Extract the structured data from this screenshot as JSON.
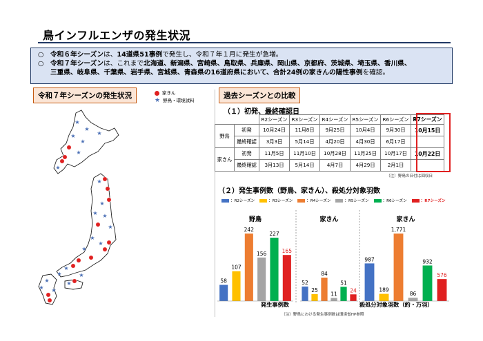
{
  "page": {
    "title": "鳥インフルエンザの発生状況"
  },
  "summary": {
    "bullet": "○",
    "r6_bold1": "令和６年シーズン",
    "r6_text1": "は、",
    "r6_bold2": "14道県51事例",
    "r6_text2": "で発生し、令和７年１月に発生が急増。",
    "r7_bold1": "令和７年シーズン",
    "r7_text1": "は、これまで",
    "r7_bold2": "北海道、新潟県、宮崎県、鳥取県、兵庫県、岡山県、京都府、茨城県、埼玉県、香川県、",
    "r7_bold3": "三重県、岐阜県、千葉県、岩手県、宮城県、青森県の16道府県において、合計24例の家きんの陽性事例",
    "r7_text3": "を確認。"
  },
  "map_section": {
    "label": "令和７年シーズンの発生状況",
    "legend_poultry": "家きん",
    "legend_wild": "野鳥・環境試料",
    "legend_poultry_color": "#e02020",
    "legend_wild_color": "#4a6fb5"
  },
  "compare_section": {
    "label": "過去シーズンとの比較",
    "sub1": "（１）初発、最終確認日",
    "sub2": "（２）発生事例数（野鳥、家きん）、殺処分対象羽数",
    "headers": [
      "R2シーズン",
      "R3シーズン",
      "R4シーズン",
      "R5シーズン",
      "R6シーズン",
      "R7シーズン"
    ],
    "groups": [
      {
        "name": "野鳥",
        "rows": [
          {
            "label": "初発",
            "values": [
              "10月24日",
              "11月8日",
              "9月25日",
              "10月4日",
              "9月30日",
              "10月15日"
            ]
          },
          {
            "label": "最終確認",
            "values": [
              "3月3日",
              "5月14日",
              "4月20日",
              "4月30日",
              "6月17日",
              ""
            ]
          }
        ]
      },
      {
        "name": "家きん",
        "rows": [
          {
            "label": "初発",
            "values": [
              "11月5日",
              "11月10日",
              "10月28日",
              "11月25日",
              "10月17日",
              "10月22日"
            ]
          },
          {
            "label": "最終確認",
            "values": [
              "3月13日",
              "5月14日",
              "4月7日",
              "4月29日",
              "2月1日",
              ""
            ]
          }
        ]
      }
    ],
    "note1": "（注）野鳥の日付は回収日",
    "note2": "（注）野鳥における発生事例数は環境省HP参照",
    "caption_cases": "発生事例数",
    "caption_culled": "殺処分対象羽数（約・万羽）"
  },
  "chart_data": [
    {
      "type": "bar",
      "title": "野鳥",
      "categories": [
        "R2シーズン",
        "R3シーズン",
        "R4シーズン",
        "R5シーズン",
        "R6シーズン",
        "R7シーズン"
      ],
      "values": [
        58,
        107,
        242,
        156,
        227,
        165
      ],
      "colors": [
        "#4472c4",
        "#ffc000",
        "#ed7d31",
        "#a5a5a5",
        "#00b050",
        "#e02020"
      ]
    },
    {
      "type": "bar",
      "title": "家きん",
      "categories": [
        "R2シーズン",
        "R3シーズン",
        "R4シーズン",
        "R5シーズン",
        "R6シーズン",
        "R7シーズン"
      ],
      "values": [
        52,
        25,
        84,
        11,
        51,
        24
      ],
      "colors": [
        "#4472c4",
        "#ffc000",
        "#ed7d31",
        "#a5a5a5",
        "#00b050",
        "#e02020"
      ]
    },
    {
      "type": "bar",
      "title": "家きん",
      "categories": [
        "R2シーズン",
        "R3シーズン",
        "R4シーズン",
        "R5シーズン",
        "R6シーズン",
        "R7シーズン"
      ],
      "values": [
        987,
        189,
        1771,
        86,
        932,
        576
      ],
      "labels": [
        "987",
        "189",
        "1,771",
        "86",
        "932",
        "576"
      ],
      "colors": [
        "#4472c4",
        "#ffc000",
        "#ed7d31",
        "#a5a5a5",
        "#00b050",
        "#e02020"
      ]
    }
  ],
  "chart_legend": [
    {
      "label": "：R2シーズン",
      "color": "#4472c4"
    },
    {
      "label": "：R3シーズン",
      "color": "#ffc000"
    },
    {
      "label": "：R4シーズン",
      "color": "#ed7d31"
    },
    {
      "label": "：R5シーズン",
      "color": "#a5a5a5"
    },
    {
      "label": "：R6シーズン",
      "color": "#00b050"
    },
    {
      "label": "：R7シーズン",
      "color": "#e02020"
    }
  ]
}
